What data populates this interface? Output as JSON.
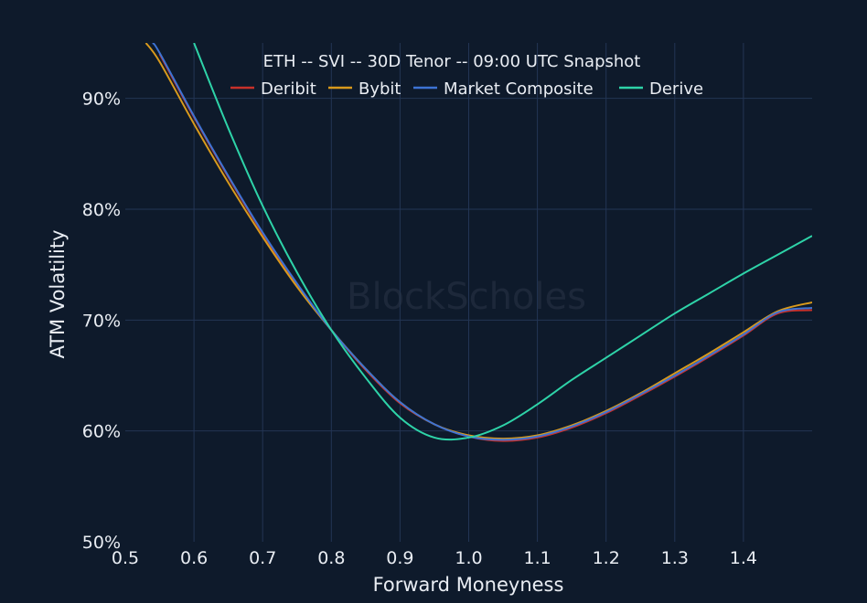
{
  "chart_data": {
    "type": "line",
    "title": "ETH -- SVI -- 30D Tenor -- 09:00 UTC Snapshot",
    "xlabel": "Forward Moneyness",
    "ylabel": "ATM Volatility",
    "xlim": [
      0.5,
      1.5
    ],
    "ylim": [
      50,
      95
    ],
    "xticks": [
      "0.5",
      "0.6",
      "0.7",
      "0.8",
      "0.9",
      "1.0",
      "1.1",
      "1.2",
      "1.3",
      "1.4"
    ],
    "yticks": [
      "50%",
      "60%",
      "70%",
      "80%",
      "90%"
    ],
    "ytick_values": [
      50,
      60,
      70,
      80,
      90
    ],
    "xtick_values": [
      0.5,
      0.6,
      0.7,
      0.8,
      0.9,
      1.0,
      1.1,
      1.2,
      1.3,
      1.4
    ],
    "grid": true,
    "legend_position": "top",
    "watermark": "BlockScholes",
    "series": [
      {
        "name": "Deribit",
        "color": "#c8302a",
        "x": [
          0.55,
          0.6,
          0.65,
          0.7,
          0.75,
          0.8,
          0.85,
          0.9,
          0.95,
          1.0,
          1.05,
          1.1,
          1.15,
          1.2,
          1.25,
          1.3,
          1.35,
          1.4,
          1.45,
          1.5
        ],
        "y": [
          94.0,
          88.3,
          82.9,
          77.8,
          73.2,
          69.1,
          65.5,
          62.5,
          60.6,
          59.5,
          59.1,
          59.4,
          60.3,
          61.6,
          63.2,
          64.9,
          66.7,
          68.6,
          70.6,
          70.9
        ]
      },
      {
        "name": "Bybit",
        "color": "#d99a1c",
        "x": [
          0.53,
          0.55,
          0.6,
          0.65,
          0.7,
          0.75,
          0.8,
          0.85,
          0.9,
          0.95,
          1.0,
          1.05,
          1.1,
          1.15,
          1.2,
          1.25,
          1.3,
          1.35,
          1.4,
          1.45,
          1.5
        ],
        "y": [
          95.0,
          93.3,
          87.7,
          82.4,
          77.5,
          73.0,
          69.1,
          65.6,
          62.6,
          60.6,
          59.6,
          59.3,
          59.6,
          60.5,
          61.8,
          63.4,
          65.2,
          67.0,
          68.9,
          70.8,
          71.6
        ]
      },
      {
        "name": "Market Composite",
        "color": "#3d73d4",
        "x": [
          0.54,
          0.55,
          0.6,
          0.65,
          0.7,
          0.75,
          0.8,
          0.85,
          0.9,
          0.95,
          1.0,
          1.05,
          1.1,
          1.15,
          1.2,
          1.25,
          1.3,
          1.35,
          1.4,
          1.45,
          1.5
        ],
        "y": [
          95.0,
          94.1,
          88.4,
          83.0,
          77.9,
          73.3,
          69.1,
          65.6,
          62.6,
          60.6,
          59.5,
          59.2,
          59.5,
          60.4,
          61.7,
          63.3,
          65.0,
          66.8,
          68.7,
          70.7,
          71.1
        ]
      },
      {
        "name": "Derive",
        "color": "#2ed3a8",
        "x": [
          0.6,
          0.65,
          0.7,
          0.75,
          0.8,
          0.85,
          0.9,
          0.95,
          1.0,
          1.05,
          1.1,
          1.15,
          1.2,
          1.25,
          1.3,
          1.35,
          1.4,
          1.45,
          1.5
        ],
        "y": [
          95.0,
          87.3,
          80.3,
          74.3,
          69.1,
          64.8,
          61.2,
          59.4,
          59.4,
          60.5,
          62.4,
          64.6,
          66.6,
          68.6,
          70.6,
          72.4,
          74.2,
          75.9,
          77.6
        ]
      }
    ]
  }
}
